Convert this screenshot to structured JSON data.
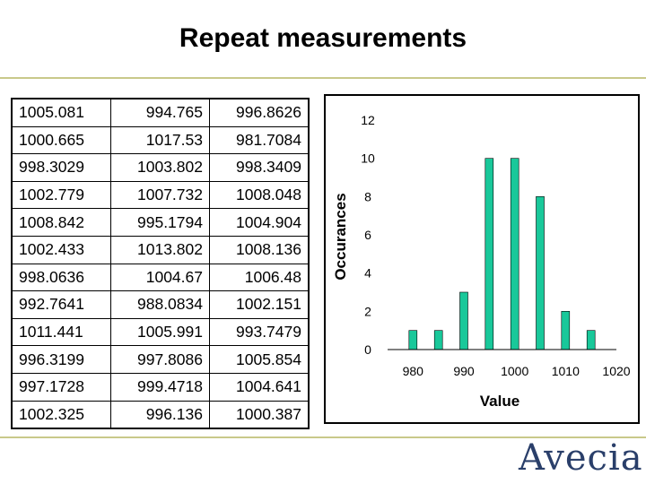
{
  "slide": {
    "title": "Repeat measurements",
    "logo_text": "Avecia"
  },
  "table": {
    "rows": [
      [
        "1005.081",
        "994.765",
        "996.8626"
      ],
      [
        "1000.665",
        "1017.53",
        "981.7084"
      ],
      [
        "998.3029",
        "1003.802",
        "998.3409"
      ],
      [
        "1002.779",
        "1007.732",
        "1008.048"
      ],
      [
        "1008.842",
        "995.1794",
        "1004.904"
      ],
      [
        "1002.433",
        "1013.802",
        "1008.136"
      ],
      [
        "998.0636",
        "1004.67",
        "1006.48"
      ],
      [
        "992.7641",
        "988.0834",
        "1002.151"
      ],
      [
        "1011.441",
        "1005.991",
        "993.7479"
      ],
      [
        "996.3199",
        "997.8086",
        "1005.854"
      ],
      [
        "997.1728",
        "999.4718",
        "1004.641"
      ],
      [
        "1002.325",
        "996.136",
        "1000.387"
      ]
    ]
  },
  "chart_data": {
    "type": "bar",
    "title": "",
    "xlabel": "Value",
    "ylabel": "Occurances",
    "x": [
      980,
      985,
      990,
      995,
      1000,
      1005,
      1010,
      1015,
      1020
    ],
    "values": [
      1,
      1,
      3,
      10,
      10,
      8,
      2,
      1,
      0
    ],
    "xlim": [
      975,
      1020
    ],
    "ylim": [
      0,
      12
    ],
    "x_ticks": [
      980,
      990,
      1000,
      1010,
      1020
    ],
    "y_ticks": [
      0,
      2,
      4,
      6,
      8,
      10,
      12
    ],
    "grid": false,
    "legend": "none",
    "colors": {
      "bar": "#19c89a",
      "bar_edge": "#000000",
      "axis": "#000000",
      "frame": "#000000"
    }
  }
}
